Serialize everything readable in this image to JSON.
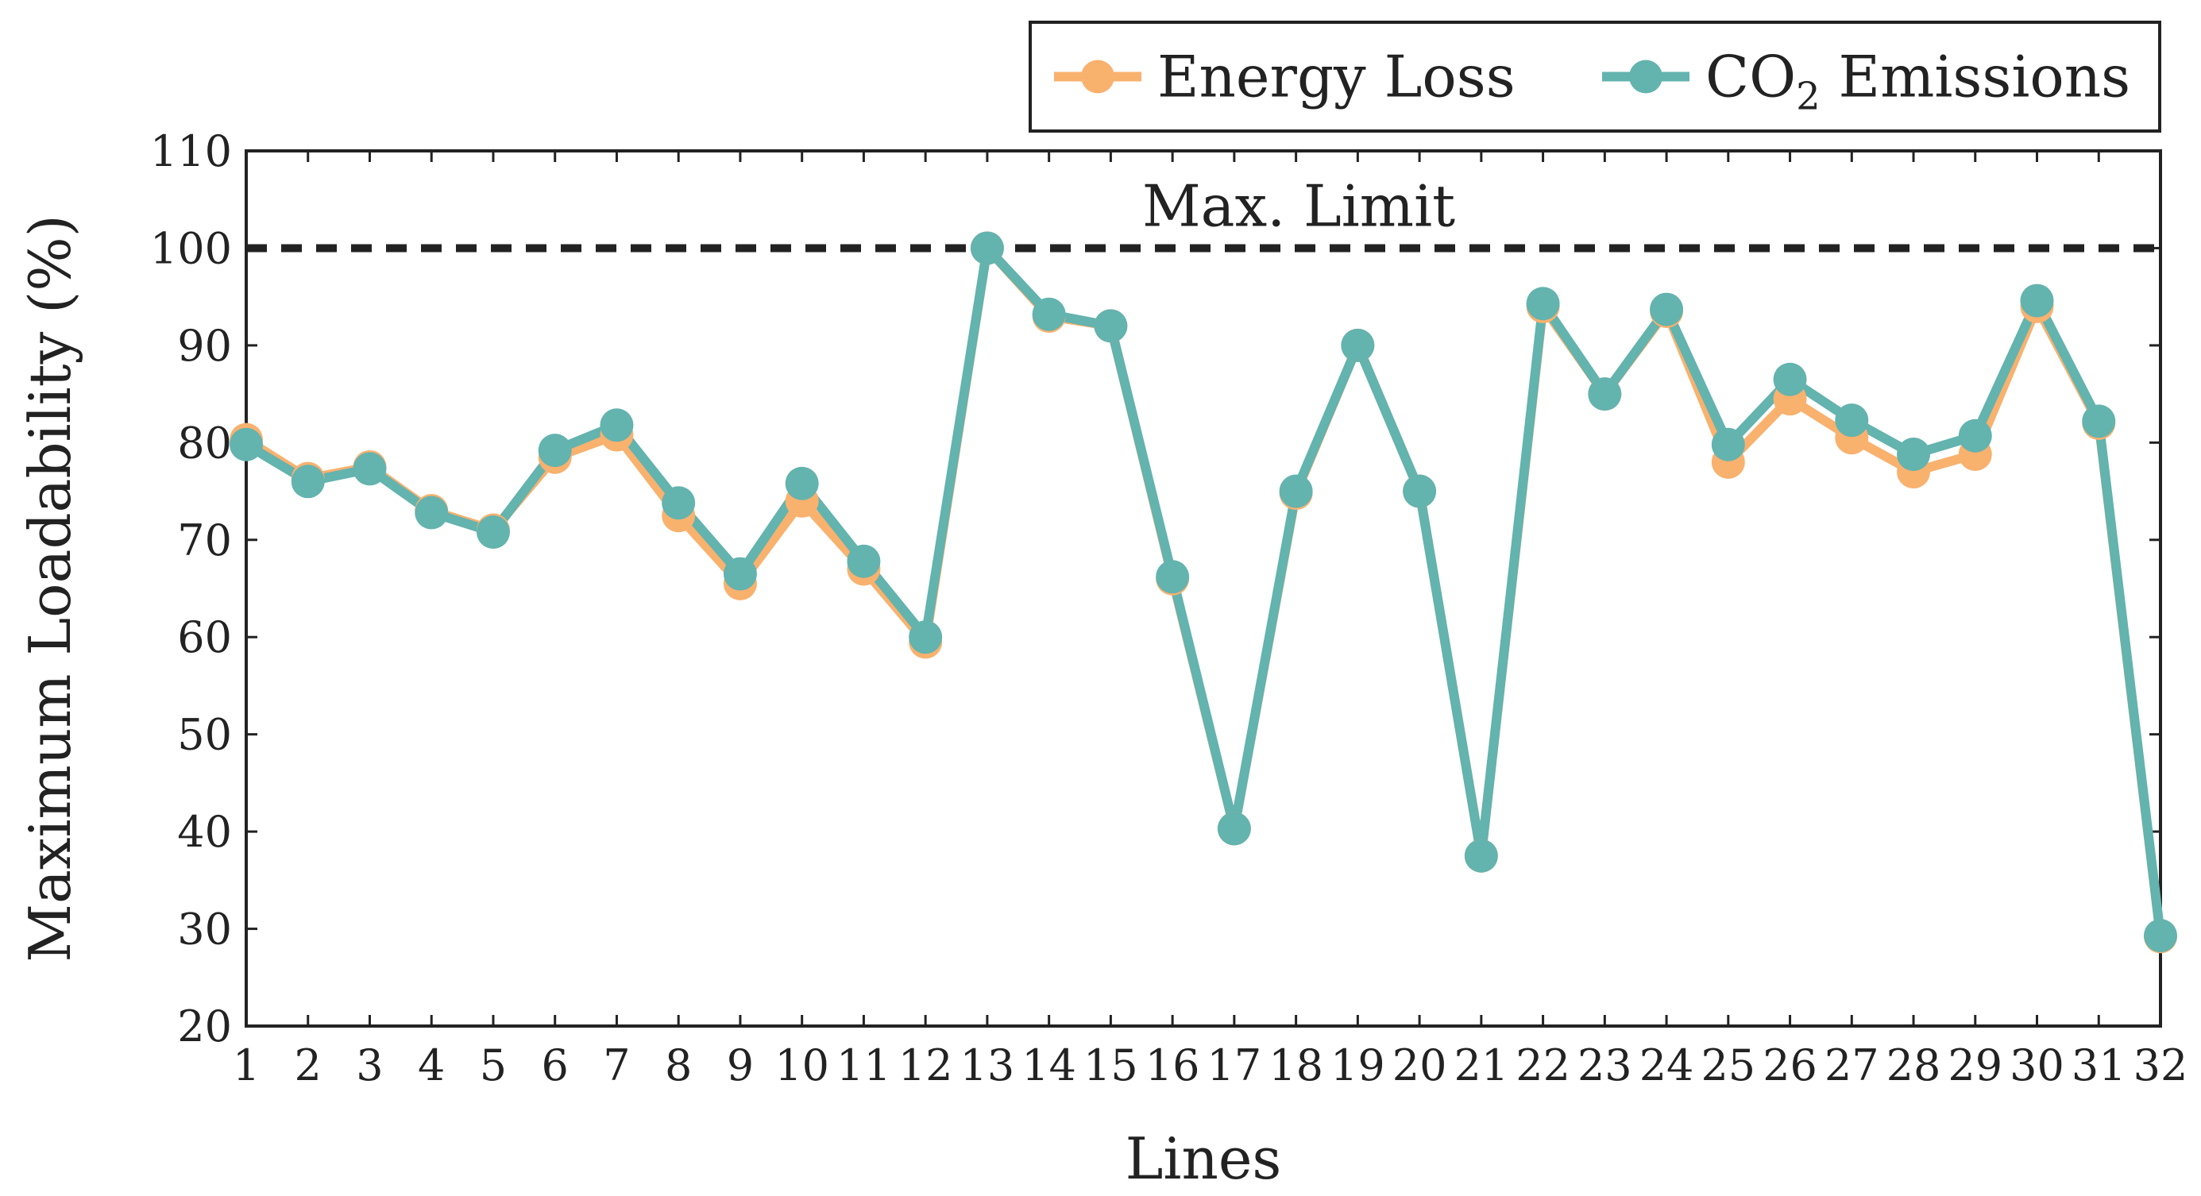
{
  "chart_data": {
    "type": "line",
    "title": "",
    "xlabel": "Lines",
    "ylabel": "Maximum Loadability (%)",
    "ylim": [
      20,
      110
    ],
    "yticks": [
      20,
      30,
      40,
      50,
      60,
      70,
      80,
      90,
      100,
      110
    ],
    "categories": [
      "1",
      "2",
      "3",
      "4",
      "5",
      "6",
      "7",
      "8",
      "9",
      "10",
      "11",
      "12",
      "13",
      "14",
      "15",
      "16",
      "17",
      "18",
      "19",
      "20",
      "21",
      "22",
      "23",
      "24",
      "25",
      "26",
      "27",
      "28",
      "29",
      "30",
      "31",
      "32"
    ],
    "grid": false,
    "legend": {
      "placement": "top-right",
      "entries": [
        {
          "name": "Energy Loss",
          "color": "#F9B16E"
        },
        {
          "name": "CO",
          "subscript": "2",
          "suffix": " Emissions",
          "color": "#63B3AE"
        }
      ]
    },
    "series": [
      {
        "name": "Energy Loss",
        "color": "#F9B16E",
        "values": [
          80.3,
          76.3,
          77.5,
          73.0,
          71.0,
          78.5,
          80.8,
          72.5,
          65.5,
          74.0,
          67.0,
          59.5,
          100.0,
          93.0,
          92.0,
          66.0,
          40.3,
          74.8,
          90.0,
          75.0,
          37.5,
          94.0,
          85.0,
          93.5,
          78.0,
          84.5,
          80.5,
          77.0,
          78.8,
          94.0,
          82.0,
          29.2
        ]
      },
      {
        "name": "CO2 Emissions",
        "color": "#63B3AE",
        "values": [
          79.8,
          76.0,
          77.3,
          72.8,
          70.8,
          79.2,
          81.8,
          73.8,
          66.5,
          75.8,
          67.8,
          60.0,
          100.0,
          93.2,
          92.0,
          66.2,
          40.3,
          75.0,
          90.0,
          75.0,
          37.5,
          94.3,
          85.0,
          93.7,
          79.8,
          86.5,
          82.3,
          78.8,
          80.7,
          94.6,
          82.2,
          29.3
        ]
      }
    ],
    "reference_line": {
      "value": 100,
      "label": "Max. Limit",
      "style": "dashed",
      "color": "#222222"
    }
  }
}
